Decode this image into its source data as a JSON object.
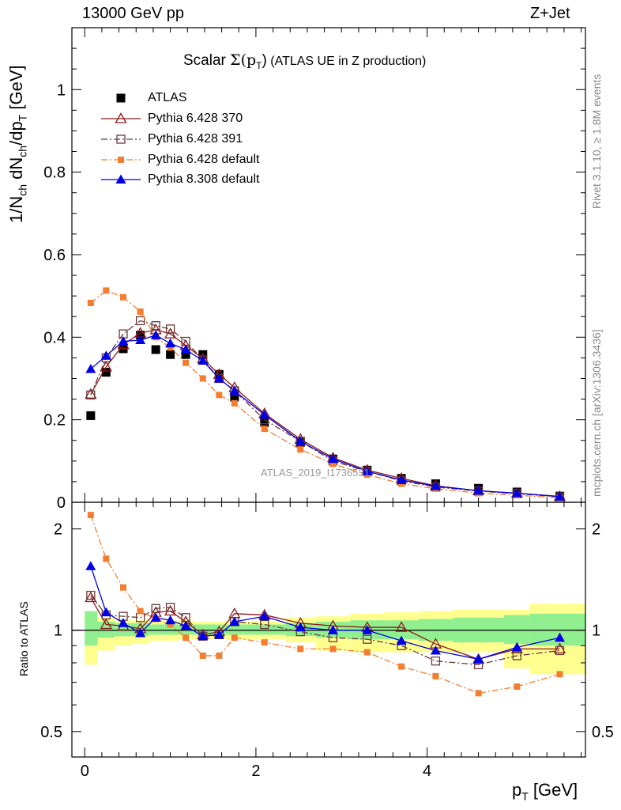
{
  "header": {
    "left": "13000 GeV pp",
    "right": "Z+Jet"
  },
  "title": {
    "prefix": "Scalar ",
    "sigma": "Σ(p",
    "sub": "T",
    "close": ")",
    "suffix": " (ATLAS UE in Z production)"
  },
  "side_labels": {
    "rivet": "Rivet 3.1.10, ≥ 1.8M events",
    "mcplots": "mcplots.cern.ch [arXiv:1306.3436]"
  },
  "watermark": "ATLAS_2019_I1736531",
  "y_axis_main": {
    "p1": "1/N",
    "s1": "ch",
    "p2": " dN",
    "s2": "ch",
    "p3": "/dp",
    "s3": "T",
    "p4": " [GeV]"
  },
  "y_axis_ratio": "Ratio to ATLAS",
  "x_axis": {
    "p1": "p",
    "s1": "T",
    "p2": " [GeV]"
  },
  "chart_data": {
    "type": "line",
    "xlim": [
      -0.15,
      5.85
    ],
    "main_ylim": [
      0,
      1.15
    ],
    "ratio_ylim": [
      0.42,
      2.4
    ],
    "ratio_log_scale": true,
    "main_yticks": [
      "0",
      "0.2",
      "0.4",
      "0.6",
      "0.8",
      "1"
    ],
    "main_ytick_values": [
      0,
      0.2,
      0.4,
      0.6,
      0.8,
      1.0
    ],
    "ratio_yticks": [
      "0.5",
      "1",
      "2"
    ],
    "ratio_ytick_values": [
      0.5,
      1,
      2
    ],
    "xticks": [
      "0",
      "2",
      "4"
    ],
    "xtick_values": [
      0,
      2,
      4
    ],
    "x": [
      0.07,
      0.25,
      0.45,
      0.65,
      0.83,
      1.0,
      1.18,
      1.38,
      1.57,
      1.75,
      2.1,
      2.52,
      2.9,
      3.3,
      3.7,
      4.1,
      4.6,
      5.05,
      5.55
    ],
    "series": [
      {
        "name": "ATLAS",
        "color": "#000000",
        "marker": "square",
        "line": "none",
        "values": [
          0.21,
          0.315,
          0.372,
          0.405,
          0.37,
          0.358,
          0.358,
          0.358,
          0.31,
          0.255,
          0.193,
          0.145,
          0.105,
          0.078,
          0.058,
          0.045,
          0.034,
          0.025,
          0.015
        ]
      },
      {
        "name": "Pythia 6.428 370",
        "color": "#8b1a1a",
        "marker": "triangle-open",
        "line": "solid",
        "values": [
          0.262,
          0.328,
          0.382,
          0.41,
          0.418,
          0.408,
          0.38,
          0.348,
          0.31,
          0.278,
          0.215,
          0.153,
          0.108,
          0.078,
          0.058,
          0.04,
          0.028,
          0.022,
          0.014
        ]
      },
      {
        "name": "Pythia 6.428 391",
        "color": "#6b3a3a",
        "marker": "square-open",
        "line": "dashdot",
        "values": [
          0.26,
          0.35,
          0.408,
          0.44,
          0.428,
          0.42,
          0.39,
          0.345,
          0.3,
          0.27,
          0.2,
          0.148,
          0.1,
          0.075,
          0.052,
          0.037,
          0.027,
          0.021,
          0.013
        ]
      },
      {
        "name": "Pythia 6.428 default",
        "color": "#f47d30",
        "marker": "square-filled-small",
        "line": "dashdot",
        "values": [
          0.483,
          0.513,
          0.497,
          0.462,
          0.4,
          0.375,
          0.338,
          0.3,
          0.26,
          0.24,
          0.178,
          0.128,
          0.093,
          0.067,
          0.045,
          0.033,
          0.022,
          0.017,
          0.011
        ]
      },
      {
        "name": "Pythia 8.308 default",
        "color": "#0000e6",
        "marker": "triangle-filled",
        "line": "solid",
        "values": [
          0.323,
          0.355,
          0.39,
          0.393,
          0.405,
          0.385,
          0.37,
          0.343,
          0.3,
          0.27,
          0.212,
          0.148,
          0.105,
          0.075,
          0.054,
          0.039,
          0.028,
          0.022,
          0.014
        ]
      }
    ],
    "ratio": {
      "band_edges": [
        0.0,
        0.15,
        0.35,
        0.55,
        0.75,
        0.91,
        1.09,
        1.27,
        1.47,
        1.66,
        1.85,
        2.35,
        2.7,
        3.1,
        3.5,
        3.9,
        4.3,
        4.9,
        5.2,
        5.85
      ],
      "green_band": [
        [
          0.9,
          1.14
        ],
        [
          0.95,
          1.06
        ],
        [
          0.96,
          1.05
        ],
        [
          0.96,
          1.05
        ],
        [
          0.97,
          1.04
        ],
        [
          0.97,
          1.04
        ],
        [
          0.97,
          1.04
        ],
        [
          0.97,
          1.04
        ],
        [
          0.97,
          1.04
        ],
        [
          0.97,
          1.04
        ],
        [
          0.97,
          1.04
        ],
        [
          0.96,
          1.05
        ],
        [
          0.95,
          1.06
        ],
        [
          0.94,
          1.07
        ],
        [
          0.94,
          1.07
        ],
        [
          0.93,
          1.08
        ],
        [
          0.92,
          1.09
        ],
        [
          0.91,
          1.11
        ],
        [
          0.9,
          1.12
        ]
      ],
      "yellow_band": [
        [
          0.79,
          1.14
        ],
        [
          0.87,
          1.09
        ],
        [
          0.9,
          1.07
        ],
        [
          0.91,
          1.07
        ],
        [
          0.93,
          1.07
        ],
        [
          0.93,
          1.07
        ],
        [
          0.94,
          1.07
        ],
        [
          0.94,
          1.06
        ],
        [
          0.94,
          1.06
        ],
        [
          0.94,
          1.06
        ],
        [
          0.94,
          1.06
        ],
        [
          0.92,
          1.09
        ],
        [
          0.87,
          1.1
        ],
        [
          0.86,
          1.12
        ],
        [
          0.86,
          1.13
        ],
        [
          0.86,
          1.14
        ],
        [
          0.86,
          1.15
        ],
        [
          0.77,
          1.15
        ],
        [
          0.74,
          1.2
        ]
      ],
      "series": [
        {
          "name": "Pythia 6.428 370",
          "values": [
            1.25,
            1.04,
            1.03,
            1.01,
            1.13,
            1.14,
            1.06,
            0.97,
            0.99,
            1.12,
            1.11,
            1.05,
            1.03,
            1.02,
            1.02,
            0.91,
            0.82,
            0.88,
            0.88
          ]
        },
        {
          "name": "Pythia 6.428 391",
          "values": [
            1.27,
            1.11,
            1.1,
            1.09,
            1.16,
            1.17,
            1.09,
            0.96,
            0.97,
            1.06,
            1.04,
            0.99,
            0.95,
            0.94,
            0.9,
            0.81,
            0.79,
            0.84,
            0.87
          ]
        },
        {
          "name": "Pythia 6.428 default",
          "values": [
            2.2,
            1.63,
            1.34,
            1.14,
            1.08,
            1.04,
            0.95,
            0.84,
            0.84,
            0.95,
            0.92,
            0.88,
            0.88,
            0.86,
            0.78,
            0.73,
            0.65,
            0.68,
            0.74
          ]
        },
        {
          "name": "Pythia 8.308 default",
          "values": [
            1.55,
            1.13,
            1.05,
            0.98,
            1.09,
            1.07,
            1.03,
            0.96,
            0.97,
            1.06,
            1.1,
            1.02,
            1.0,
            1.0,
            0.93,
            0.87,
            0.82,
            0.89,
            0.95
          ]
        }
      ]
    }
  }
}
